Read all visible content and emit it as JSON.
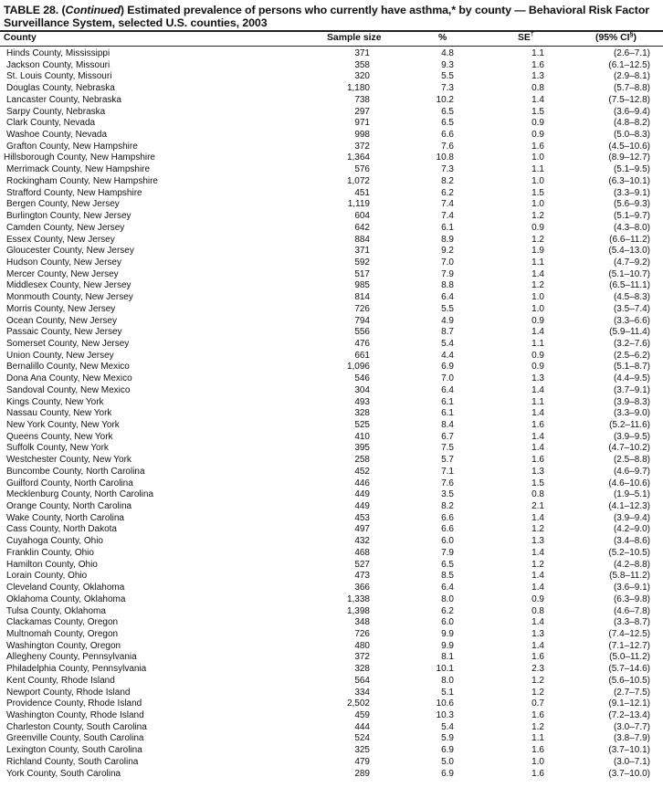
{
  "title": {
    "prefix": "TABLE 28. (",
    "italic": "Continued",
    "rest": ") Estimated prevalence of persons who currently have asthma,* by county — Behavioral Risk Factor Surveillance System, selected U.S. counties, 2003"
  },
  "columns": {
    "county": "County",
    "sample_size": "Sample size",
    "percent": "%",
    "se": "SE",
    "se_mark": "†",
    "ci": "(95% CI",
    "ci_mark": "§",
    "ci_close": ")"
  },
  "rows": [
    [
      "Hinds County, Mississippi",
      "371",
      "4.8",
      "1.1",
      "(2.6–7.1)"
    ],
    [
      "Jackson County, Missouri",
      "358",
      "9.3",
      "1.6",
      "(6.1–12.5)"
    ],
    [
      "St. Louis County, Missouri",
      "320",
      "5.5",
      "1.3",
      "(2.9–8.1)"
    ],
    [
      "Douglas County, Nebraska",
      "1,180",
      "7.3",
      "0.8",
      "(5.7–8.8)"
    ],
    [
      "Lancaster County, Nebraska",
      "738",
      "10.2",
      "1.4",
      "(7.5–12.8)"
    ],
    [
      "Sarpy County, Nebraska",
      "297",
      "6.5",
      "1.5",
      "(3.6–9.4)"
    ],
    [
      "Clark County, Nevada",
      "971",
      "6.5",
      "0.9",
      "(4.8–8.2)"
    ],
    [
      "Washoe County, Nevada",
      "998",
      "6.6",
      "0.9",
      "(5.0–8.3)"
    ],
    [
      "Grafton County, New Hampshire",
      "372",
      "7.6",
      "1.6",
      "(4.5–10.6)"
    ],
    [
      "Hillsborough County, New Hampshire",
      "1,364",
      "10.8",
      "1.0",
      "(8.9–12.7)"
    ],
    [
      "Merrimack County, New Hampshire",
      "576",
      "7.3",
      "1.1",
      "(5.1–9.5)"
    ],
    [
      "Rockingham County, New Hampshire",
      "1,072",
      "8.2",
      "1.0",
      "(6.3–10.1)"
    ],
    [
      "Strafford County, New Hampshire",
      "451",
      "6.2",
      "1.5",
      "(3.3–9.1)"
    ],
    [
      "Bergen County, New Jersey",
      "1,119",
      "7.4",
      "1.0",
      "(5.6–9.3)"
    ],
    [
      "Burlington County, New Jersey",
      "604",
      "7.4",
      "1.2",
      "(5.1–9.7)"
    ],
    [
      "Camden County, New Jersey",
      "642",
      "6.1",
      "0.9",
      "(4.3–8.0)"
    ],
    [
      "Essex County, New Jersey",
      "884",
      "8.9",
      "1.2",
      "(6.6–11.2)"
    ],
    [
      "Gloucester County, New Jersey",
      "371",
      "9.2",
      "1.9",
      "(5.4–13.0)"
    ],
    [
      "Hudson County, New Jersey",
      "592",
      "7.0",
      "1.1",
      "(4.7–9.2)"
    ],
    [
      "Mercer County, New Jersey",
      "517",
      "7.9",
      "1.4",
      "(5.1–10.7)"
    ],
    [
      "Middlesex County, New Jersey",
      "985",
      "8.8",
      "1.2",
      "(6.5–11.1)"
    ],
    [
      "Monmouth County, New Jersey",
      "814",
      "6.4",
      "1.0",
      "(4.5–8.3)"
    ],
    [
      "Morris County, New Jersey",
      "726",
      "5.5",
      "1.0",
      "(3.5–7.4)"
    ],
    [
      "Ocean County, New Jersey",
      "794",
      "4.9",
      "0.9",
      "(3.3–6.6)"
    ],
    [
      "Passaic County, New Jersey",
      "556",
      "8.7",
      "1.4",
      "(5.9–11.4)"
    ],
    [
      "Somerset County, New Jersey",
      "476",
      "5.4",
      "1.1",
      "(3.2–7.6)"
    ],
    [
      "Union County, New Jersey",
      "661",
      "4.4",
      "0.9",
      "(2.5–6.2)"
    ],
    [
      "Bernalillo County, New Mexico",
      "1,096",
      "6.9",
      "0.9",
      "(5.1–8.7)"
    ],
    [
      "Dona Ana County, New Mexico",
      "546",
      "7.0",
      "1.3",
      "(4.4–9.5)"
    ],
    [
      "Sandoval County, New Mexico",
      "304",
      "6.4",
      "1.4",
      "(3.7–9.1)"
    ],
    [
      "Kings County, New York",
      "493",
      "6.1",
      "1.1",
      "(3.9–8.3)"
    ],
    [
      "Nassau County, New York",
      "328",
      "6.1",
      "1.4",
      "(3.3–9.0)"
    ],
    [
      "New York County, New York",
      "525",
      "8.4",
      "1.6",
      "(5.2–11.6)"
    ],
    [
      "Queens County, New York",
      "410",
      "6.7",
      "1.4",
      "(3.9–9.5)"
    ],
    [
      "Suffolk County, New York",
      "395",
      "7.5",
      "1.4",
      "(4.7–10.2)"
    ],
    [
      "Westchester County, New York",
      "258",
      "5.7",
      "1.6",
      "(2.5–8.8)"
    ],
    [
      "Buncombe County, North Carolina",
      "452",
      "7.1",
      "1.3",
      "(4.6–9.7)"
    ],
    [
      "Guilford County, North Carolina",
      "446",
      "7.6",
      "1.5",
      "(4.6–10.6)"
    ],
    [
      "Mecklenburg County, North Carolina",
      "449",
      "3.5",
      "0.8",
      "(1.9–5.1)"
    ],
    [
      "Orange County, North Carolina",
      "449",
      "8.2",
      "2.1",
      "(4.1–12.3)"
    ],
    [
      "Wake County, North Carolina",
      "453",
      "6.6",
      "1.4",
      "(3.9–9.4)"
    ],
    [
      "Cass County, North Dakota",
      "497",
      "6.6",
      "1.2",
      "(4.2–9.0)"
    ],
    [
      "Cuyahoga County, Ohio",
      "432",
      "6.0",
      "1.3",
      "(3.4–8.6)"
    ],
    [
      "Franklin County, Ohio",
      "468",
      "7.9",
      "1.4",
      "(5.2–10.5)"
    ],
    [
      "Hamilton County, Ohio",
      "527",
      "6.5",
      "1.2",
      "(4.2–8.8)"
    ],
    [
      "Lorain County, Ohio",
      "473",
      "8.5",
      "1.4",
      "(5.8–11.2)"
    ],
    [
      "Cleveland County, Oklahoma",
      "366",
      "6.4",
      "1.4",
      "(3.6–9.1)"
    ],
    [
      "Oklahoma County, Oklahoma",
      "1,338",
      "8.0",
      "0.9",
      "(6.3–9.8)"
    ],
    [
      "Tulsa County, Oklahoma",
      "1,398",
      "6.2",
      "0.8",
      "(4.6–7.8)"
    ],
    [
      "Clackamas County, Oregon",
      "348",
      "6.0",
      "1.4",
      "(3.3–8.7)"
    ],
    [
      "Multnomah County, Oregon",
      "726",
      "9.9",
      "1.3",
      "(7.4–12.5)"
    ],
    [
      "Washington County, Oregon",
      "480",
      "9.9",
      "1.4",
      "(7.1–12.7)"
    ],
    [
      "Allegheny County, Pennsylvania",
      "372",
      "8.1",
      "1.6",
      "(5.0–11.2)"
    ],
    [
      "Philadelphia County, Pennsylvania",
      "328",
      "10.1",
      "2.3",
      "(5.7–14.6)"
    ],
    [
      "Kent County, Rhode Island",
      "564",
      "8.0",
      "1.2",
      "(5.6–10.5)"
    ],
    [
      "Newport County, Rhode Island",
      "334",
      "5.1",
      "1.2",
      "(2.7–7.5)"
    ],
    [
      "Providence County, Rhode Island",
      "2,502",
      "10.6",
      "0.7",
      "(9.1–12.1)"
    ],
    [
      "Washington County, Rhode Island",
      "459",
      "10.3",
      "1.6",
      "(7.2–13.4)"
    ],
    [
      "Charleston County, South Carolina",
      "444",
      "5.4",
      "1.2",
      "(3.0–7.7)"
    ],
    [
      "Greenville County, South Carolina",
      "524",
      "5.9",
      "1.1",
      "(3.8–7.9)"
    ],
    [
      "Lexington County, South Carolina",
      "325",
      "6.9",
      "1.6",
      "(3.7–10.1)"
    ],
    [
      "Richland County, South Carolina",
      "479",
      "5.0",
      "1.0",
      "(3.0–7.1)"
    ],
    [
      "York County, South Carolina",
      "289",
      "6.9",
      "1.6",
      "(3.7–10.0)"
    ]
  ]
}
